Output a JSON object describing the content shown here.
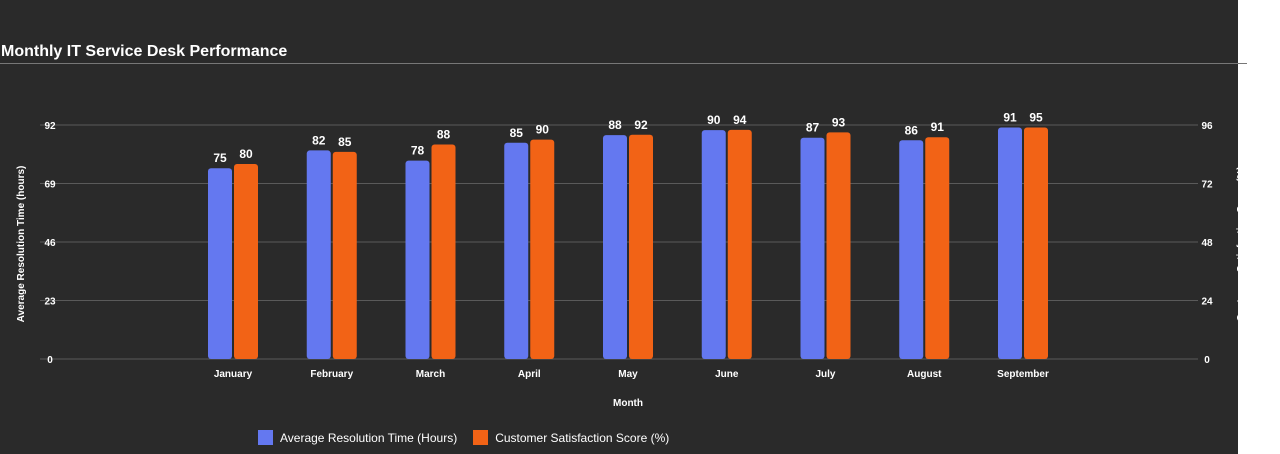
{
  "title": "Monthly IT Service Desk Performance",
  "colors": {
    "background": "#2a2a2a",
    "series_1": "#6478f0",
    "series_2": "#f26316",
    "grid": "#5a5a5a",
    "text": "#ffffff"
  },
  "chart_data": {
    "type": "bar",
    "title": "Monthly IT Service Desk Performance",
    "xlabel": "Month",
    "ylabel_left": "Average Resolution Time (hours)",
    "ylabel_right": "Customer Satisfaction Score (%)",
    "categories": [
      "January",
      "February",
      "March",
      "April",
      "May",
      "June",
      "July",
      "August",
      "September"
    ],
    "series": [
      {
        "name": "Average Resolution Time (Hours)",
        "axis": "left",
        "values": [
          75,
          82,
          78,
          85,
          88,
          90,
          87,
          86,
          91
        ]
      },
      {
        "name": "Customer Satisfaction Score (%)",
        "axis": "right",
        "values": [
          80,
          85,
          88,
          90,
          92,
          94,
          93,
          91,
          95
        ]
      }
    ],
    "ylim_left": [
      0,
      92
    ],
    "yticks_left": [
      "0",
      "23",
      "46",
      "69",
      "92"
    ],
    "ylim_right": [
      0,
      96
    ],
    "yticks_right": [
      "0",
      "24",
      "48",
      "72",
      "96"
    ],
    "grid": true,
    "legend_position": "bottom"
  }
}
